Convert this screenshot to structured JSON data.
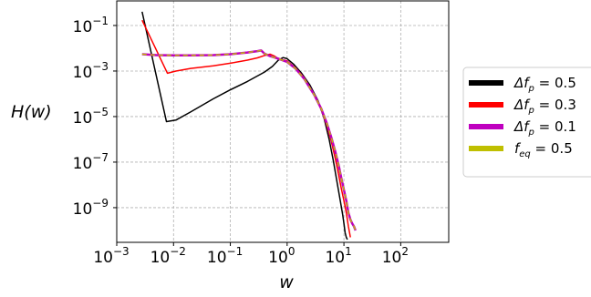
{
  "chart_data": {
    "type": "line",
    "title": "",
    "xlabel": "w",
    "ylabel": "H(w)",
    "xscale": "log",
    "yscale": "log",
    "xlim": [
      0.001,
      700
    ],
    "ylim": [
      3e-11,
      1.2
    ],
    "grid": true,
    "legend_placement": "right, outside",
    "x_ticks": [
      {
        "base": "10",
        "exp": "−3",
        "value": 0.001
      },
      {
        "base": "10",
        "exp": "−2",
        "value": 0.01
      },
      {
        "base": "10",
        "exp": "−1",
        "value": 0.1
      },
      {
        "base": "10",
        "exp": "0",
        "value": 1
      },
      {
        "base": "10",
        "exp": "1",
        "value": 10
      },
      {
        "base": "10",
        "exp": "2",
        "value": 100
      }
    ],
    "y_ticks": [
      {
        "base": "10",
        "exp": "−1",
        "value": 0.1
      },
      {
        "base": "10",
        "exp": "−3",
        "value": 0.001
      },
      {
        "base": "10",
        "exp": "−5",
        "value": 1e-05
      },
      {
        "base": "10",
        "exp": "−7",
        "value": 1e-07
      },
      {
        "base": "10",
        "exp": "−9",
        "value": 1e-09
      }
    ],
    "series": [
      {
        "name": "Δf_p = 0.5",
        "legend_main": "Δf",
        "legend_sub": "p",
        "legend_rest": " =  0.5",
        "color": "#000000",
        "linewidth": 1.5,
        "legend_width": 6,
        "x": [
          0.0028,
          0.0075,
          0.011,
          0.02,
          0.05,
          0.1,
          0.2,
          0.4,
          0.55,
          0.7,
          0.85,
          1.0,
          1.3,
          1.8,
          2.5,
          3.5,
          4.5,
          5.5,
          6.5,
          7.5,
          8.5,
          9.5,
          10,
          10.5,
          11,
          11.5
        ],
        "y": [
          0.4,
          6e-06,
          7e-06,
          1.6e-05,
          6e-05,
          0.00015,
          0.00035,
          0.0009,
          0.0016,
          0.003,
          0.0039,
          0.0035,
          0.002,
          0.0008,
          0.00025,
          5e-05,
          8e-06,
          1e-06,
          1.2e-07,
          1.5e-08,
          2.5e-09,
          5e-10,
          2e-10,
          8e-11,
          5e-11,
          4e-11
        ]
      },
      {
        "name": "Δf_p = 0.3",
        "legend_main": "Δf",
        "legend_sub": "p",
        "legend_rest": " =  0.3",
        "color": "#ff0000",
        "linewidth": 1.5,
        "legend_width": 6,
        "x": [
          0.0028,
          0.0078,
          0.011,
          0.02,
          0.05,
          0.1,
          0.2,
          0.3,
          0.4,
          0.5,
          0.6,
          0.7,
          1.0,
          1.4,
          2.0,
          3.0,
          4.0,
          5.0,
          6.0,
          7.0,
          8.0,
          9.0,
          10.0,
          11.0,
          12.0,
          13.0
        ],
        "y": [
          0.17,
          0.0008,
          0.001,
          0.0013,
          0.0017,
          0.0022,
          0.003,
          0.0038,
          0.0048,
          0.0055,
          0.0045,
          0.0035,
          0.0028,
          0.0014,
          0.0005,
          9e-05,
          2e-05,
          4e-06,
          8e-07,
          1.5e-07,
          3e-08,
          7e-09,
          2e-09,
          6e-10,
          1.5e-10,
          5e-11
        ]
      },
      {
        "name": "Δf_p = 0.1",
        "legend_main": "Δf",
        "legend_sub": "p",
        "legend_rest": " =  0.1",
        "color": "#bf00bf",
        "linewidth": 2.5,
        "legend_width": 6,
        "x": [
          0.0028,
          0.005,
          0.01,
          0.02,
          0.05,
          0.1,
          0.2,
          0.3,
          0.35,
          0.4,
          0.5,
          0.7,
          1.0,
          1.4,
          2.0,
          3.0,
          4.0,
          5.0,
          6.0,
          7.0,
          8.0,
          9.0,
          10.0,
          11.0,
          12.0,
          13.0,
          14.0,
          15.0,
          16.0
        ],
        "y": [
          0.0055,
          0.005,
          0.0049,
          0.0049,
          0.005,
          0.0055,
          0.0065,
          0.0075,
          0.008,
          0.0058,
          0.0045,
          0.0035,
          0.0025,
          0.0013,
          0.00045,
          9e-05,
          2.2e-05,
          5e-06,
          1.2e-06,
          3e-07,
          8e-08,
          2e-08,
          6e-09,
          2e-09,
          6e-10,
          3e-10,
          2e-10,
          1.5e-10,
          1e-10
        ]
      },
      {
        "name": "f_eq = 0.5",
        "legend_main": "f",
        "legend_sub": "eq",
        "legend_rest": " = 0.5",
        "color": "#bfbf00",
        "linewidth": 1.4,
        "legend_width": 6,
        "dashed": true,
        "x": [
          0.0028,
          0.005,
          0.01,
          0.02,
          0.05,
          0.1,
          0.2,
          0.3,
          0.35,
          0.4,
          0.5,
          0.7,
          1.0,
          1.4,
          2.0,
          3.0,
          4.0,
          5.0,
          6.0,
          7.0,
          8.0,
          9.0,
          10.0,
          11.0,
          12.0,
          13.0,
          14.0,
          15.0,
          16.0
        ],
        "y": [
          0.0055,
          0.005,
          0.0049,
          0.0049,
          0.005,
          0.0055,
          0.0065,
          0.0075,
          0.008,
          0.0058,
          0.0045,
          0.0035,
          0.0025,
          0.0013,
          0.00045,
          9e-05,
          2.2e-05,
          5e-06,
          1.2e-06,
          3e-07,
          8e-08,
          2e-08,
          6e-09,
          2e-09,
          6e-10,
          3e-10,
          2e-10,
          1.5e-10,
          1e-10
        ]
      }
    ]
  }
}
